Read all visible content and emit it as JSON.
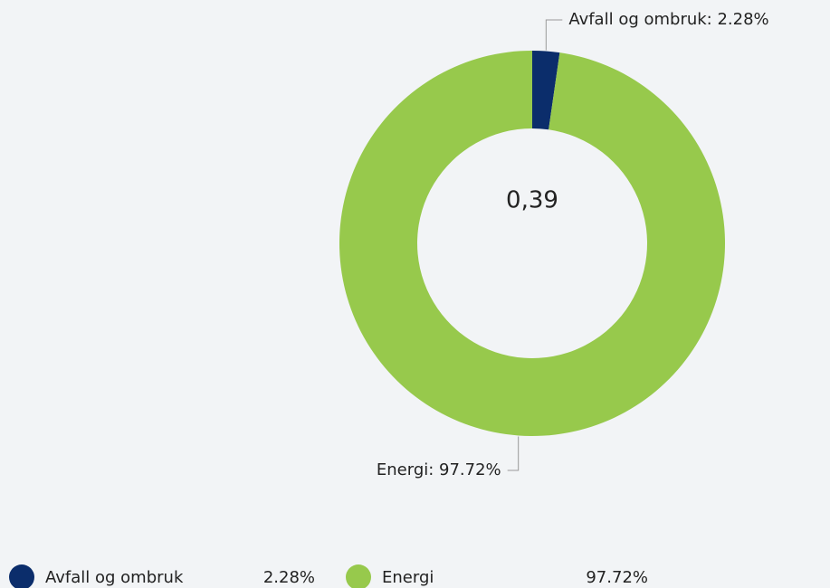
{
  "chart_data": {
    "type": "donut",
    "categories": [
      "Avfall og ombruk",
      "Energi"
    ],
    "values": [
      2.28,
      97.72
    ],
    "value_labels": [
      "Avfall og ombruk: 2.28%",
      "Energi: 97.72%"
    ],
    "legend_values": [
      "2.28%",
      "97.72%"
    ],
    "colors": [
      "#0b2d6b",
      "#97c94c"
    ],
    "center_text": "0,39"
  }
}
